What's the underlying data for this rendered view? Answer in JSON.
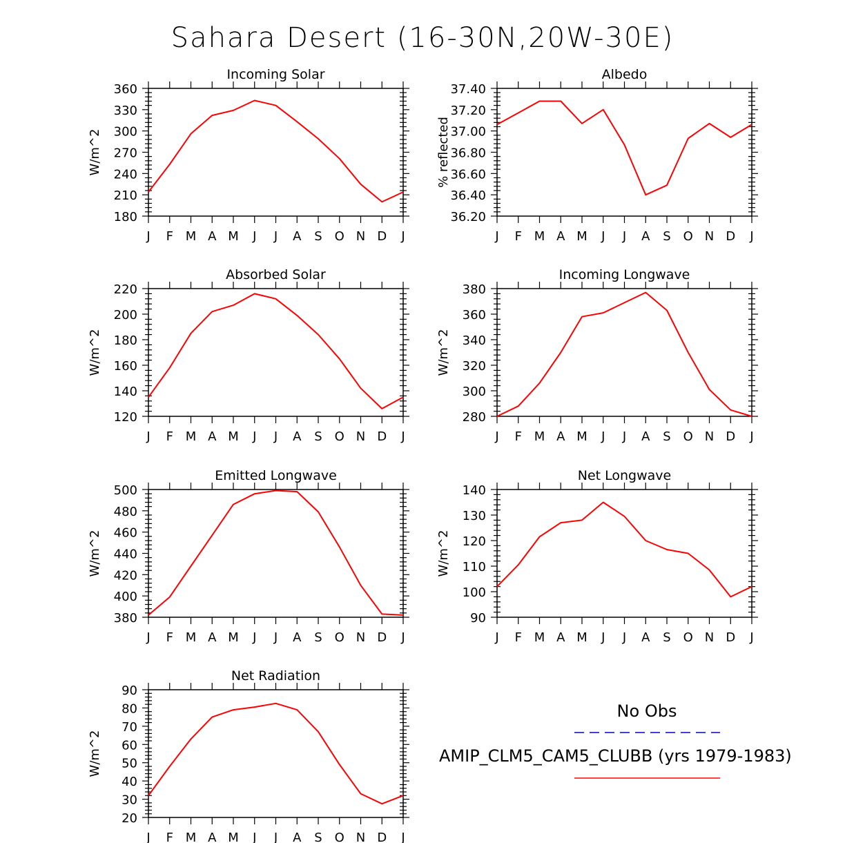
{
  "title": "Sahara Desert (16-30N,20W-30E)",
  "months": [
    "J",
    "F",
    "M",
    "A",
    "M",
    "J",
    "J",
    "A",
    "S",
    "O",
    "N",
    "D",
    "J"
  ],
  "legend": {
    "obs_label": "No Obs",
    "model_label": "AMIP_CLM5_CAM5_CLUBB (yrs 1979-1983)",
    "obs_color": "#0000cc",
    "model_color": "#ff0000"
  },
  "chart_data": [
    {
      "type": "line",
      "title": "Incoming Solar",
      "ylabel": "W/m^2",
      "ylim": [
        180,
        360
      ],
      "yticks": [
        180,
        210,
        240,
        270,
        300,
        330,
        360
      ],
      "ytick_labels": [
        "180",
        "210",
        "240",
        "270",
        "300",
        "330",
        "360"
      ],
      "x": [
        "J",
        "F",
        "M",
        "A",
        "M",
        "J",
        "J",
        "A",
        "S",
        "O",
        "N",
        "D",
        "J"
      ],
      "series": [
        {
          "values": [
            214,
            253,
            296,
            322,
            329,
            343,
            336,
            313,
            289,
            261,
            225,
            200,
            214
          ]
        }
      ]
    },
    {
      "type": "line",
      "title": "Albedo",
      "ylabel": "% reflected",
      "ylim": [
        36.2,
        37.4
      ],
      "yticks": [
        36.2,
        36.4,
        36.6,
        36.8,
        37.0,
        37.2,
        37.4
      ],
      "ytick_labels": [
        "36.20",
        "36.40",
        "36.60",
        "36.80",
        "37.00",
        "37.20",
        "37.40"
      ],
      "x": [
        "J",
        "F",
        "M",
        "A",
        "M",
        "J",
        "J",
        "A",
        "S",
        "O",
        "N",
        "D",
        "J"
      ],
      "series": [
        {
          "values": [
            37.06,
            37.17,
            37.28,
            37.28,
            37.07,
            37.2,
            36.87,
            36.4,
            36.49,
            36.93,
            37.07,
            36.94,
            37.06
          ]
        }
      ]
    },
    {
      "type": "line",
      "title": "Absorbed Solar",
      "ylabel": "W/m^2",
      "ylim": [
        120,
        220
      ],
      "yticks": [
        120,
        140,
        160,
        180,
        200,
        220
      ],
      "ytick_labels": [
        "120",
        "140",
        "160",
        "180",
        "200",
        "220"
      ],
      "x": [
        "J",
        "F",
        "M",
        "A",
        "M",
        "J",
        "J",
        "A",
        "S",
        "O",
        "N",
        "D",
        "J"
      ],
      "series": [
        {
          "values": [
            135,
            158,
            185,
            202,
            207,
            216,
            212,
            199,
            184,
            165,
            142,
            126,
            135
          ]
        }
      ]
    },
    {
      "type": "line",
      "title": "Incoming Longwave",
      "ylabel": "W/m^2",
      "ylim": [
        280,
        380
      ],
      "yticks": [
        280,
        300,
        320,
        340,
        360,
        380
      ],
      "ytick_labels": [
        "280",
        "300",
        "320",
        "340",
        "360",
        "380"
      ],
      "x": [
        "J",
        "F",
        "M",
        "A",
        "M",
        "J",
        "J",
        "A",
        "S",
        "O",
        "N",
        "D",
        "J"
      ],
      "series": [
        {
          "values": [
            280,
            288,
            306,
            330,
            358,
            361,
            369,
            377,
            363,
            330,
            301,
            285,
            280
          ]
        }
      ]
    },
    {
      "type": "line",
      "title": "Emitted Longwave",
      "ylabel": "W/m^2",
      "ylim": [
        380,
        500
      ],
      "yticks": [
        380,
        400,
        420,
        440,
        460,
        480,
        500
      ],
      "ytick_labels": [
        "380",
        "400",
        "420",
        "440",
        "460",
        "480",
        "500"
      ],
      "x": [
        "J",
        "F",
        "M",
        "A",
        "M",
        "J",
        "J",
        "A",
        "S",
        "O",
        "N",
        "D",
        "J"
      ],
      "series": [
        {
          "values": [
            382,
            399,
            428,
            457,
            486,
            496,
            499,
            498,
            479,
            446,
            410,
            383,
            382
          ]
        }
      ]
    },
    {
      "type": "line",
      "title": "Net Longwave",
      "ylabel": "W/m^2",
      "ylim": [
        90,
        140
      ],
      "yticks": [
        90,
        100,
        110,
        120,
        130,
        140
      ],
      "ytick_labels": [
        "90",
        "100",
        "110",
        "120",
        "130",
        "140"
      ],
      "x": [
        "J",
        "F",
        "M",
        "A",
        "M",
        "J",
        "J",
        "A",
        "S",
        "O",
        "N",
        "D",
        "J"
      ],
      "series": [
        {
          "values": [
            102,
            110.5,
            121.5,
            127,
            128,
            135,
            129.5,
            120,
            116.5,
            115,
            108.5,
            98,
            102
          ]
        }
      ]
    },
    {
      "type": "line",
      "title": "Net Radiation",
      "ylabel": "W/m^2",
      "ylim": [
        20,
        90
      ],
      "yticks": [
        20,
        30,
        40,
        50,
        60,
        70,
        80,
        90
      ],
      "ytick_labels": [
        "20",
        "30",
        "40",
        "50",
        "60",
        "70",
        "80",
        "90"
      ],
      "x": [
        "J",
        "F",
        "M",
        "A",
        "M",
        "J",
        "J",
        "A",
        "S",
        "O",
        "N",
        "D",
        "J"
      ],
      "series": [
        {
          "values": [
            32,
            48,
            63,
            75,
            79,
            80.5,
            82.5,
            79,
            67,
            49,
            33,
            27.5,
            32
          ]
        }
      ]
    }
  ]
}
